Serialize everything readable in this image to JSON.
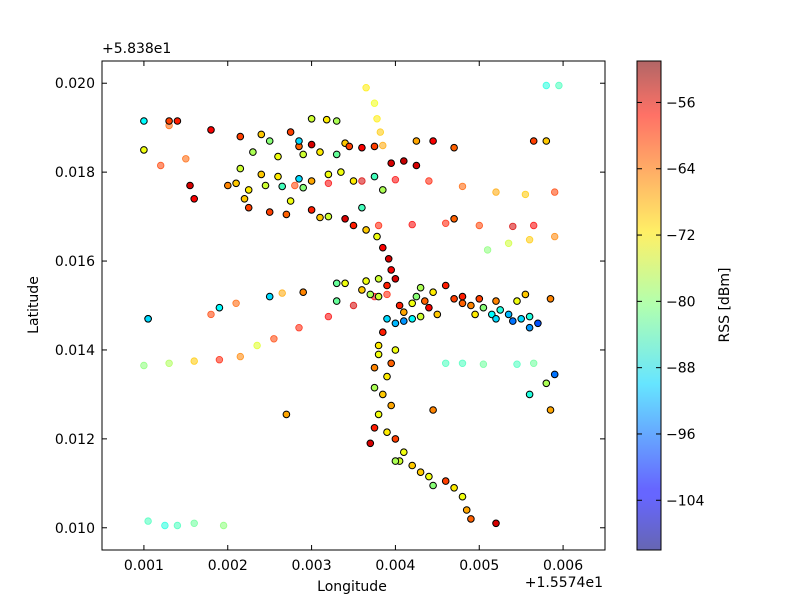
{
  "chart_data": {
    "type": "scatter",
    "xlabel": "Longitude",
    "ylabel": "Latitude",
    "x_offset_label": "+1.5574e1",
    "y_offset_label": "+5.838e1",
    "xlim": [
      0.0005,
      0.0065
    ],
    "ylim": [
      0.0095,
      0.0205
    ],
    "x_ticks": [
      "0.001",
      "0.002",
      "0.003",
      "0.004",
      "0.005",
      "0.006"
    ],
    "y_ticks": [
      "0.010",
      "0.012",
      "0.014",
      "0.016",
      "0.018",
      "0.020"
    ],
    "colorbar": {
      "label": "RSS [dBm]",
      "colormap": "jet",
      "range": [
        -110,
        -51
      ],
      "ticks": [
        "−104",
        "−96",
        "−88",
        "−80",
        "−72",
        "−64",
        "−56"
      ],
      "tick_values": [
        -104,
        -96,
        -88,
        -80,
        -72,
        -64,
        -56
      ]
    },
    "series": [
      {
        "style": "faded",
        "points": [
          [
            0.001,
            0.01365,
            -80
          ],
          [
            0.0013,
            0.0137,
            -78
          ],
          [
            0.0016,
            0.01375,
            -70
          ],
          [
            0.0019,
            0.01378,
            -60
          ],
          [
            0.00215,
            0.01385,
            -66
          ],
          [
            0.00235,
            0.0141,
            -75
          ],
          [
            0.00255,
            0.01425,
            -62
          ],
          [
            0.00285,
            0.0145,
            -60
          ],
          [
            0.0032,
            0.01475,
            -58
          ],
          [
            0.0035,
            0.015,
            -56
          ],
          [
            0.00375,
            0.0152,
            -58
          ],
          [
            0.0039,
            0.01525,
            -60
          ],
          [
            0.0018,
            0.0148,
            -62
          ],
          [
            0.0021,
            0.01505,
            -64
          ],
          [
            0.00265,
            0.01528,
            -68
          ],
          [
            0.0028,
            0.0177,
            -62
          ],
          [
            0.0032,
            0.01775,
            -58
          ],
          [
            0.0036,
            0.0178,
            -56
          ],
          [
            0.004,
            0.01783,
            -58
          ],
          [
            0.0044,
            0.0178,
            -60
          ],
          [
            0.0048,
            0.01768,
            -64
          ],
          [
            0.0052,
            0.01755,
            -68
          ],
          [
            0.00555,
            0.0175,
            -70
          ],
          [
            0.0059,
            0.01755,
            -62
          ],
          [
            0.0038,
            0.0168,
            -60
          ],
          [
            0.0042,
            0.01682,
            -58
          ],
          [
            0.0046,
            0.01685,
            -60
          ],
          [
            0.005,
            0.0168,
            -62
          ],
          [
            0.0054,
            0.01678,
            -56
          ],
          [
            0.00565,
            0.0168,
            -58
          ],
          [
            0.0051,
            0.01625,
            -80
          ],
          [
            0.00535,
            0.0164,
            -76
          ],
          [
            0.0056,
            0.01648,
            -70
          ],
          [
            0.0059,
            0.01655,
            -66
          ],
          [
            0.00365,
            0.0199,
            -72
          ],
          [
            0.00375,
            0.01955,
            -74
          ],
          [
            0.00378,
            0.0192,
            -72
          ],
          [
            0.00382,
            0.0189,
            -70
          ],
          [
            0.00385,
            0.0186,
            -68
          ],
          [
            0.0058,
            0.01995,
            -86
          ],
          [
            0.00595,
            0.01995,
            -84
          ],
          [
            0.0046,
            0.0137,
            -84
          ],
          [
            0.0048,
            0.0137,
            -84
          ],
          [
            0.00505,
            0.01368,
            -82
          ],
          [
            0.00545,
            0.01368,
            -84
          ],
          [
            0.00565,
            0.0137,
            -82
          ],
          [
            0.00105,
            0.01015,
            -84
          ],
          [
            0.00125,
            0.01005,
            -86
          ],
          [
            0.0014,
            0.01005,
            -84
          ],
          [
            0.0016,
            0.0101,
            -82
          ],
          [
            0.00195,
            0.01005,
            -80
          ],
          [
            0.0012,
            0.01815,
            -62
          ],
          [
            0.0013,
            0.01905,
            -64
          ],
          [
            0.0015,
            0.0183,
            -64
          ]
        ]
      },
      {
        "style": "bold",
        "points": [
          [
            0.001,
            0.01915,
            -88
          ],
          [
            0.0014,
            0.01915,
            -60
          ],
          [
            0.0018,
            0.01895,
            -58
          ],
          [
            0.00215,
            0.0188,
            -62
          ],
          [
            0.0024,
            0.01885,
            -70
          ],
          [
            0.00275,
            0.0189,
            -62
          ],
          [
            0.003,
            0.0192,
            -76
          ],
          [
            0.00318,
            0.01918,
            -72
          ],
          [
            0.0033,
            0.01915,
            -78
          ],
          [
            0.0025,
            0.0187,
            -80
          ],
          [
            0.00285,
            0.01858,
            -64
          ],
          [
            0.003,
            0.01862,
            -56
          ],
          [
            0.0034,
            0.01865,
            -70
          ],
          [
            0.0023,
            0.01845,
            -78
          ],
          [
            0.0026,
            0.01835,
            -74
          ],
          [
            0.0029,
            0.0184,
            -76
          ],
          [
            0.0031,
            0.01845,
            -72
          ],
          [
            0.0033,
            0.0184,
            -82
          ],
          [
            0.00345,
            0.01858,
            -62
          ],
          [
            0.0036,
            0.01855,
            -58
          ],
          [
            0.00375,
            0.01858,
            -62
          ],
          [
            0.00395,
            0.0182,
            -56
          ],
          [
            0.0041,
            0.01825,
            -55
          ],
          [
            0.00425,
            0.01815,
            -56
          ],
          [
            0.00215,
            0.01808,
            -76
          ],
          [
            0.0024,
            0.01795,
            -70
          ],
          [
            0.0026,
            0.0179,
            -72
          ],
          [
            0.00285,
            0.01785,
            -90
          ],
          [
            0.003,
            0.0178,
            -68
          ],
          [
            0.0032,
            0.01795,
            -74
          ],
          [
            0.00225,
            0.0176,
            -72
          ],
          [
            0.00245,
            0.0177,
            -76
          ],
          [
            0.00265,
            0.01768,
            -84
          ],
          [
            0.0029,
            0.01765,
            -80
          ],
          [
            0.00335,
            0.018,
            -74
          ],
          [
            0.0035,
            0.0178,
            -72
          ],
          [
            0.00155,
            0.0177,
            -56
          ],
          [
            0.002,
            0.0177,
            -66
          ],
          [
            0.0021,
            0.01775,
            -70
          ],
          [
            0.0022,
            0.0174,
            -70
          ],
          [
            0.0025,
            0.0171,
            -62
          ],
          [
            0.00275,
            0.01735,
            -74
          ],
          [
            0.003,
            0.01715,
            -60
          ],
          [
            0.0032,
            0.017,
            -76
          ],
          [
            0.0034,
            0.01695,
            -56
          ],
          [
            0.0035,
            0.0168,
            -60
          ],
          [
            0.00365,
            0.0167,
            -70
          ],
          [
            0.00378,
            0.01655,
            -74
          ],
          [
            0.00385,
            0.0163,
            -58
          ],
          [
            0.00392,
            0.01605,
            -56
          ],
          [
            0.00395,
            0.0158,
            -58
          ],
          [
            0.0038,
            0.0156,
            -76
          ],
          [
            0.00365,
            0.01555,
            -74
          ],
          [
            0.0039,
            0.01545,
            -60
          ],
          [
            0.0038,
            0.0152,
            -76
          ],
          [
            0.0037,
            0.01525,
            -78
          ],
          [
            0.0036,
            0.01535,
            -70
          ],
          [
            0.0034,
            0.0155,
            -74
          ],
          [
            0.0033,
            0.0151,
            -82
          ],
          [
            0.0029,
            0.0153,
            -66
          ],
          [
            0.0025,
            0.0152,
            -90
          ],
          [
            0.0019,
            0.01495,
            -88
          ],
          [
            0.00105,
            0.0147,
            -90
          ],
          [
            0.004,
            0.0156,
            -56
          ],
          [
            0.00405,
            0.015,
            -60
          ],
          [
            0.0041,
            0.01485,
            -68
          ],
          [
            0.0042,
            0.01505,
            -74
          ],
          [
            0.00425,
            0.0152,
            -80
          ],
          [
            0.0043,
            0.0154,
            -78
          ],
          [
            0.00435,
            0.0151,
            -64
          ],
          [
            0.0044,
            0.01495,
            -58
          ],
          [
            0.00445,
            0.0153,
            -72
          ],
          [
            0.0042,
            0.0147,
            -88
          ],
          [
            0.0041,
            0.01465,
            -94
          ],
          [
            0.004,
            0.0146,
            -92
          ],
          [
            0.0039,
            0.0147,
            -90
          ],
          [
            0.0043,
            0.01475,
            -76
          ],
          [
            0.0045,
            0.0148,
            -70
          ],
          [
            0.0046,
            0.01545,
            -60
          ],
          [
            0.0047,
            0.01515,
            -62
          ],
          [
            0.0048,
            0.01505,
            -64
          ],
          [
            0.0049,
            0.015,
            -66
          ],
          [
            0.00495,
            0.0148,
            -72
          ],
          [
            0.00505,
            0.01495,
            -80
          ],
          [
            0.00515,
            0.0148,
            -88
          ],
          [
            0.0052,
            0.0147,
            -90
          ],
          [
            0.00525,
            0.0149,
            -86
          ],
          [
            0.00535,
            0.0148,
            -92
          ],
          [
            0.0054,
            0.01465,
            -96
          ],
          [
            0.0055,
            0.0147,
            -90
          ],
          [
            0.0056,
            0.01475,
            -86
          ],
          [
            0.0057,
            0.0146,
            -98
          ],
          [
            0.00545,
            0.0151,
            -74
          ],
          [
            0.0052,
            0.0151,
            -66
          ],
          [
            0.005,
            0.01515,
            -62
          ],
          [
            0.0048,
            0.0152,
            -60
          ],
          [
            0.00555,
            0.01525,
            -70
          ],
          [
            0.00585,
            0.01515,
            -66
          ],
          [
            0.0056,
            0.0145,
            -94
          ],
          [
            0.00385,
            0.0144,
            -60
          ],
          [
            0.0038,
            0.0141,
            -72
          ],
          [
            0.0038,
            0.0139,
            -74
          ],
          [
            0.00375,
            0.0136,
            -66
          ],
          [
            0.0039,
            0.0134,
            -72
          ],
          [
            0.00375,
            0.01315,
            -78
          ],
          [
            0.00385,
            0.013,
            -70
          ],
          [
            0.00395,
            0.01275,
            -68
          ],
          [
            0.0038,
            0.01255,
            -74
          ],
          [
            0.00375,
            0.01225,
            -60
          ],
          [
            0.0039,
            0.01215,
            -72
          ],
          [
            0.004,
            0.012,
            -62
          ],
          [
            0.0041,
            0.0117,
            -74
          ],
          [
            0.00405,
            0.0115,
            -76
          ],
          [
            0.0042,
            0.0114,
            -70
          ],
          [
            0.0043,
            0.01125,
            -70
          ],
          [
            0.00445,
            0.01095,
            -80
          ],
          [
            0.0046,
            0.01105,
            -62
          ],
          [
            0.0047,
            0.0109,
            -72
          ],
          [
            0.0048,
            0.0107,
            -74
          ],
          [
            0.00485,
            0.0104,
            -68
          ],
          [
            0.0049,
            0.0102,
            -64
          ],
          [
            0.0052,
            0.0101,
            -56
          ],
          [
            0.004,
            0.014,
            -74
          ],
          [
            0.00395,
            0.0137,
            -64
          ],
          [
            0.0037,
            0.0119,
            -56
          ],
          [
            0.004,
            0.0115,
            -78
          ],
          [
            0.0044,
            0.01115,
            -74
          ],
          [
            0.0027,
            0.01255,
            -68
          ],
          [
            0.00445,
            0.01265,
            -66
          ],
          [
            0.0056,
            0.013,
            -86
          ],
          [
            0.0058,
            0.01325,
            -78
          ],
          [
            0.0059,
            0.01345,
            -96
          ],
          [
            0.00585,
            0.01265,
            -68
          ],
          [
            0.001,
            0.0185,
            -74
          ],
          [
            0.0013,
            0.01915,
            -62
          ],
          [
            0.0016,
            0.0174,
            -58
          ],
          [
            0.00225,
            0.0172,
            -62
          ],
          [
            0.0027,
            0.01705,
            -64
          ],
          [
            0.0031,
            0.01698,
            -70
          ],
          [
            0.00285,
            0.0187,
            -90
          ],
          [
            0.00425,
            0.0187,
            -68
          ],
          [
            0.00445,
            0.0187,
            -58
          ],
          [
            0.0047,
            0.01855,
            -64
          ],
          [
            0.00565,
            0.0187,
            -62
          ],
          [
            0.0058,
            0.0187,
            -70
          ],
          [
            0.0047,
            0.01695,
            -64
          ],
          [
            0.0033,
            0.0155,
            -82
          ],
          [
            0.00105,
            0.0147,
            -90
          ],
          [
            0.0036,
            0.0172,
            -84
          ],
          [
            0.00375,
            0.0179,
            -84
          ],
          [
            0.00385,
            0.0176,
            -78
          ]
        ]
      }
    ]
  }
}
